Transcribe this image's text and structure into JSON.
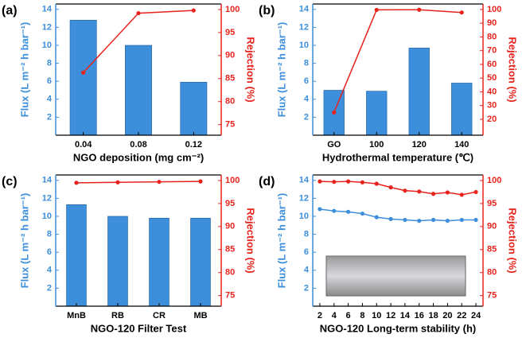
{
  "chart_data": [
    {
      "type": "bar",
      "label": "(a)",
      "xlabel": "NGO deposition (mg cm⁻²)",
      "ylabel": "Flux (L m⁻² h bar⁻¹)",
      "y2label": "Rejection (%)",
      "categories": [
        "0.04",
        "0.08",
        "0.12"
      ],
      "series": [
        {
          "type": "bar",
          "color": "#3d8fdc",
          "values": [
            12.8,
            10.0,
            5.9
          ]
        },
        {
          "type": "line",
          "color": "#e8231c",
          "axis": "y2",
          "values": [
            86.3,
            99.2,
            99.8
          ]
        }
      ],
      "ylim": [
        0,
        14.6
      ],
      "yticks": [
        2,
        4,
        6,
        8,
        10,
        12,
        14
      ],
      "y2lim": [
        72.7,
        101.2
      ],
      "y2ticks": [
        75,
        80,
        85,
        90,
        95,
        100
      ]
    },
    {
      "type": "bar",
      "label": "(b)",
      "xlabel": "Hydrothermal  temperature (℃)",
      "ylabel": "Flux (L m⁻² h bar⁻¹)",
      "y2label": "Rejection (%)",
      "categories": [
        "GO",
        "100",
        "120",
        "140"
      ],
      "series": [
        {
          "type": "bar",
          "color": "#3d8fdc",
          "values": [
            5.0,
            4.9,
            9.7,
            5.8
          ]
        },
        {
          "type": "line",
          "color": "#e8231c",
          "axis": "y2",
          "values": [
            25,
            99.7,
            99.8,
            97.8
          ]
        }
      ],
      "ylim": [
        0,
        14.6
      ],
      "yticks": [
        2,
        4,
        6,
        8,
        10,
        12,
        14
      ],
      "y2lim": [
        8.4,
        104
      ],
      "y2ticks": [
        20,
        30,
        40,
        50,
        60,
        70,
        80,
        90,
        100
      ]
    },
    {
      "type": "bar",
      "label": "(c)",
      "xlabel": "NGO-120 Filter Test",
      "ylabel": "Flux (L m⁻² h bar⁻¹)",
      "y2label": "Rejection (%)",
      "categories": [
        "MnB",
        "RB",
        "CR",
        "MB"
      ],
      "series": [
        {
          "type": "bar",
          "color": "#3d8fdc",
          "values": [
            11.3,
            10.0,
            9.8,
            9.8
          ]
        },
        {
          "type": "line",
          "color": "#e8231c",
          "axis": "y2",
          "values": [
            99.5,
            99.6,
            99.7,
            99.8
          ]
        }
      ],
      "ylim": [
        0,
        14.6
      ],
      "yticks": [
        2,
        4,
        6,
        8,
        10,
        12,
        14
      ],
      "y2lim": [
        72.7,
        101.2
      ],
      "y2ticks": [
        75,
        80,
        85,
        90,
        95,
        100
      ]
    },
    {
      "type": "line",
      "label": "(d)",
      "xlabel": "NGO-120 Long-term stability (h)",
      "ylabel": "Flux (L m⁻² h bar⁻¹)",
      "y2label": "Rejection (%)",
      "x": [
        2,
        4,
        6,
        8,
        10,
        12,
        14,
        16,
        18,
        20,
        22,
        24
      ],
      "series": [
        {
          "type": "line",
          "color": "#3d8fdc",
          "values": [
            10.8,
            10.6,
            10.5,
            10.3,
            9.9,
            9.7,
            9.6,
            9.5,
            9.6,
            9.5,
            9.6,
            9.6
          ]
        },
        {
          "type": "line",
          "color": "#e8231c",
          "axis": "y2",
          "values": [
            99.8,
            99.7,
            99.8,
            99.6,
            99.3,
            98.5,
            97.8,
            97.6,
            97.1,
            97.4,
            96.9,
            97.5
          ]
        }
      ],
      "xlim": [
        1,
        25
      ],
      "xticks": [
        2,
        4,
        6,
        8,
        10,
        12,
        14,
        16,
        18,
        20,
        22,
        24
      ],
      "ylim": [
        0,
        14.6
      ],
      "yticks": [
        2,
        4,
        6,
        8,
        10,
        12,
        14
      ],
      "y2lim": [
        72.7,
        101.2
      ],
      "y2ticks": [
        75,
        80,
        85,
        90,
        95,
        100
      ]
    }
  ]
}
